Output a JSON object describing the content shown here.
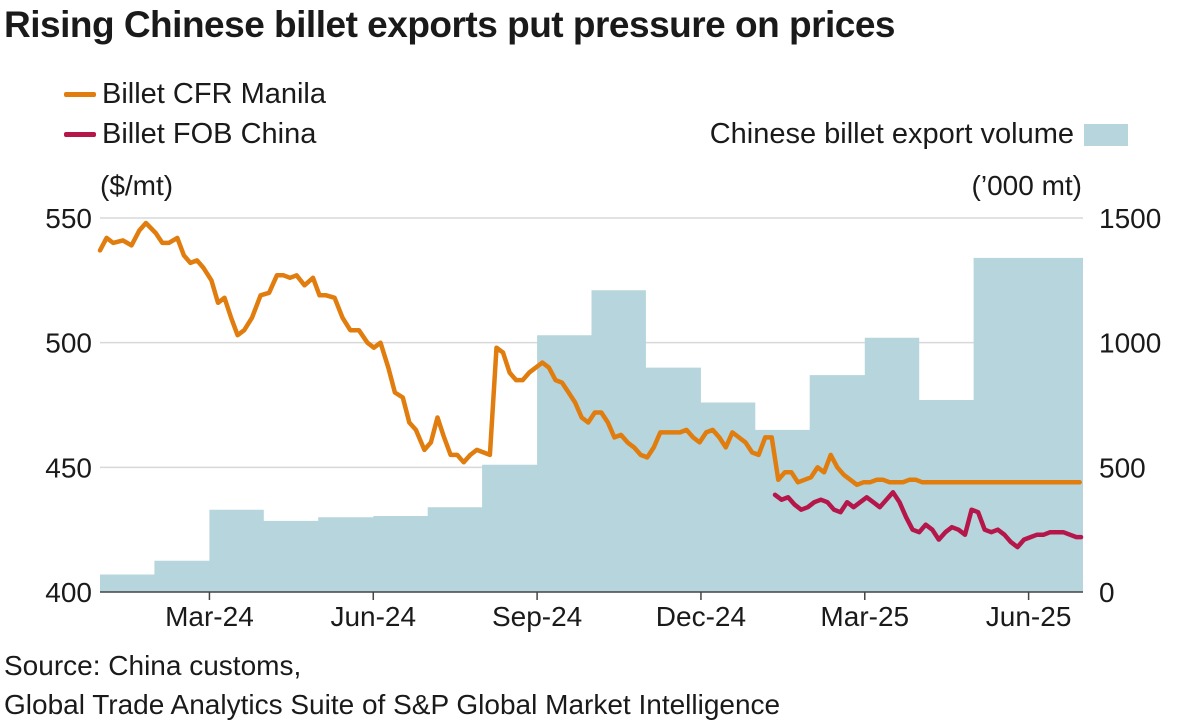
{
  "title": "Rising Chinese billet exports put pressure on prices",
  "legend": {
    "cfr_manila": "Billet CFR Manila",
    "fob_china": "Billet FOB China",
    "export_volume": "Chinese billet export volume"
  },
  "units": {
    "left": "($/mt)",
    "right": "(’000 mt)"
  },
  "source": {
    "line1": "Source: China customs,",
    "line2": "Global Trade Analytics Suite of S&P Global Market Intelligence"
  },
  "colors": {
    "cfr": "#e07d0e",
    "fob": "#b5174b",
    "area": "#b6d5dc",
    "grid": "#d8d8d8",
    "axis": "#444444"
  },
  "chart_data": {
    "type": "line+area",
    "title": "Rising Chinese billet exports put pressure on prices",
    "x_range": [
      2024.0,
      2025.5
    ],
    "x_ticks": [
      {
        "label": "Mar-24",
        "x": 2024.167
      },
      {
        "label": "Jun-24",
        "x": 2024.417
      },
      {
        "label": "Sep-24",
        "x": 2024.667
      },
      {
        "label": "Dec-24",
        "x": 2024.917
      },
      {
        "label": "Mar-25",
        "x": 2025.167
      },
      {
        "label": "Jun-25",
        "x": 2025.417
      }
    ],
    "y_left": {
      "label": "($/mt)",
      "range": [
        400,
        550
      ],
      "ticks": [
        400,
        450,
        500,
        550
      ]
    },
    "y_right": {
      "label": "(’000 mt)",
      "range": [
        0,
        1500
      ],
      "ticks": [
        0,
        500,
        1000,
        1500
      ]
    },
    "series": [
      {
        "name": "Chinese billet export volume",
        "type": "area-step",
        "axis": "right",
        "x": [
          2024.0,
          2024.083,
          2024.083,
          2024.167,
          2024.167,
          2024.25,
          2024.25,
          2024.333,
          2024.333,
          2024.417,
          2024.417,
          2024.5,
          2024.5,
          2024.583,
          2024.583,
          2024.667,
          2024.667,
          2024.75,
          2024.75,
          2024.833,
          2024.833,
          2024.917,
          2024.917,
          2025.0,
          2025.0,
          2025.083,
          2025.083,
          2025.167,
          2025.167,
          2025.25,
          2025.25,
          2025.333,
          2025.333,
          2025.417,
          2025.417,
          2025.5
        ],
        "values": [
          70,
          70,
          125,
          125,
          330,
          330,
          285,
          285,
          300,
          300,
          305,
          305,
          340,
          340,
          510,
          510,
          1030,
          1030,
          1210,
          1210,
          900,
          900,
          760,
          760,
          650,
          650,
          870,
          870,
          1020,
          1020,
          770,
          770,
          1340,
          1340,
          1340,
          1340
        ]
      },
      {
        "name": "Billet CFR Manila",
        "type": "line",
        "axis": "left",
        "x": [
          2024.0,
          2024.01,
          2024.02,
          2024.035,
          2024.048,
          2024.06,
          2024.07,
          2024.085,
          2024.095,
          2024.105,
          2024.118,
          2024.128,
          2024.138,
          2024.148,
          2024.158,
          2024.17,
          2024.18,
          2024.19,
          2024.2,
          2024.21,
          2024.22,
          2024.232,
          2024.245,
          2024.258,
          2024.27,
          2024.28,
          2024.29,
          2024.3,
          2024.312,
          2024.325,
          2024.335,
          2024.345,
          2024.358,
          2024.37,
          2024.382,
          2024.395,
          2024.408,
          2024.418,
          2024.428,
          2024.44,
          2024.45,
          2024.462,
          2024.472,
          2024.482,
          2024.495,
          2024.505,
          2024.515,
          2024.525,
          2024.535,
          2024.545,
          2024.555,
          2024.565,
          2024.575,
          2024.585,
          2024.595,
          2024.605,
          2024.615,
          2024.625,
          2024.635,
          2024.645,
          2024.655,
          2024.665,
          2024.675,
          2024.685,
          2024.695,
          2024.705,
          2024.715,
          2024.725,
          2024.735,
          2024.745,
          2024.755,
          2024.765,
          2024.775,
          2024.785,
          2024.795,
          2024.805,
          2024.815,
          2024.825,
          2024.835,
          2024.845,
          2024.855,
          2024.865,
          2024.875,
          2024.885,
          2024.895,
          2024.905,
          2024.915,
          2024.925,
          2024.935,
          2024.945,
          2024.955,
          2024.965,
          2024.975,
          2024.985,
          2024.995,
          2025.005,
          2025.015,
          2025.025,
          2025.035,
          2025.045,
          2025.055,
          2025.065,
          2025.075,
          2025.085,
          2025.095,
          2025.105,
          2025.115,
          2025.125,
          2025.135,
          2025.145,
          2025.155,
          2025.165,
          2025.175,
          2025.185,
          2025.195,
          2025.205,
          2025.215,
          2025.225,
          2025.235,
          2025.245,
          2025.255,
          2025.265,
          2025.275,
          2025.285,
          2025.295,
          2025.305,
          2025.315,
          2025.325,
          2025.335,
          2025.345,
          2025.355,
          2025.365,
          2025.375,
          2025.385,
          2025.395,
          2025.405,
          2025.415,
          2025.425,
          2025.435,
          2025.445,
          2025.455,
          2025.465,
          2025.475,
          2025.485,
          2025.495
        ],
        "values": [
          537,
          542,
          540,
          541,
          539,
          545,
          548,
          544,
          540,
          540,
          542,
          535,
          532,
          533,
          530,
          525,
          516,
          518,
          510,
          503,
          505,
          510,
          519,
          520,
          527,
          527,
          526,
          527,
          523,
          526,
          519,
          519,
          518,
          510,
          505,
          505,
          500,
          498,
          500,
          490,
          480,
          478,
          468,
          465,
          457,
          460,
          470,
          462,
          455,
          455,
          452,
          455,
          457,
          456,
          455,
          498,
          496,
          488,
          485,
          485,
          488,
          490,
          492,
          490,
          485,
          484,
          480,
          476,
          470,
          468,
          472,
          472,
          468,
          462,
          463,
          460,
          458,
          455,
          454,
          458,
          464,
          464,
          464,
          464,
          465,
          462,
          460,
          464,
          465,
          462,
          458,
          464,
          462,
          460,
          456,
          455,
          462,
          462,
          445,
          448,
          448,
          444,
          445,
          446,
          450,
          448,
          455,
          450,
          447,
          445,
          443,
          444,
          444,
          445,
          445,
          444,
          444,
          444,
          445,
          445,
          444,
          444,
          444,
          444,
          444,
          444,
          444,
          444,
          444,
          444,
          444,
          444,
          444,
          444,
          444,
          444,
          444,
          444,
          444,
          444,
          444,
          444,
          444,
          444,
          444
        ],
        "note": "values approximated; x in fractional year"
      },
      {
        "name": "Billet FOB China",
        "type": "line",
        "axis": "left",
        "x": [
          2025.03,
          2025.04,
          2025.05,
          2025.06,
          2025.07,
          2025.08,
          2025.09,
          2025.1,
          2025.11,
          2025.12,
          2025.13,
          2025.14,
          2025.15,
          2025.16,
          2025.17,
          2025.18,
          2025.19,
          2025.2,
          2025.21,
          2025.22,
          2025.23,
          2025.24,
          2025.25,
          2025.26,
          2025.27,
          2025.28,
          2025.29,
          2025.3,
          2025.31,
          2025.32,
          2025.33,
          2025.34,
          2025.35,
          2025.36,
          2025.37,
          2025.38,
          2025.39,
          2025.4,
          2025.41,
          2025.42,
          2025.43,
          2025.44,
          2025.45,
          2025.46,
          2025.47,
          2025.48,
          2025.49,
          2025.497
        ],
        "values": [
          439,
          437,
          438,
          435,
          433,
          434,
          436,
          437,
          436,
          433,
          432,
          436,
          434,
          436,
          438,
          436,
          434,
          437,
          440,
          436,
          430,
          425,
          424,
          427,
          425,
          421,
          424,
          426,
          425,
          423,
          433,
          432,
          425,
          424,
          425,
          423,
          420,
          418,
          421,
          422,
          423,
          423,
          424,
          424,
          424,
          423,
          422,
          422
        ]
      }
    ]
  }
}
